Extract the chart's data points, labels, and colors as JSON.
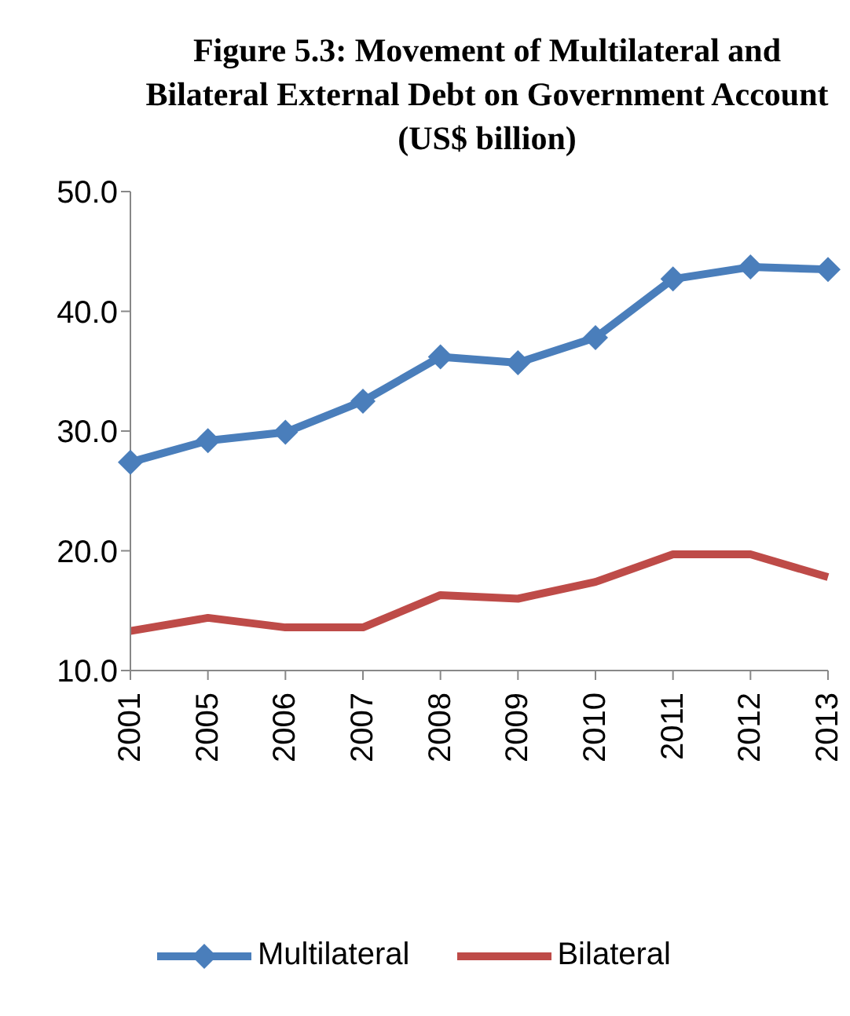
{
  "chart_data": {
    "type": "line",
    "title": "Figure 5.3: Movement of Multilateral and Bilateral External Debt on Government Account (US$ billion)",
    "categories": [
      "2001",
      "2005",
      "2006",
      "2007",
      "2008",
      "2009",
      "2010",
      "2011",
      "2012",
      "2013"
    ],
    "series": [
      {
        "name": "Multilateral",
        "color": "#4a7ebb",
        "marker": "diamond",
        "values": [
          27.4,
          29.2,
          29.9,
          32.5,
          36.2,
          35.7,
          37.8,
          42.7,
          43.7,
          43.5
        ]
      },
      {
        "name": "Bilateral",
        "color": "#be4b48",
        "marker": "none",
        "values": [
          13.3,
          14.4,
          13.6,
          13.6,
          16.3,
          16.0,
          17.4,
          19.7,
          19.7,
          17.8
        ]
      }
    ],
    "ylim": [
      10,
      50
    ],
    "yticks": [
      {
        "value": 10,
        "label": "10.0"
      },
      {
        "value": 20,
        "label": "20.0"
      },
      {
        "value": 30,
        "label": "30.0"
      },
      {
        "value": 40,
        "label": "40.0"
      },
      {
        "value": 50,
        "label": "50.0"
      }
    ],
    "grid": false,
    "legend": "bottom"
  }
}
